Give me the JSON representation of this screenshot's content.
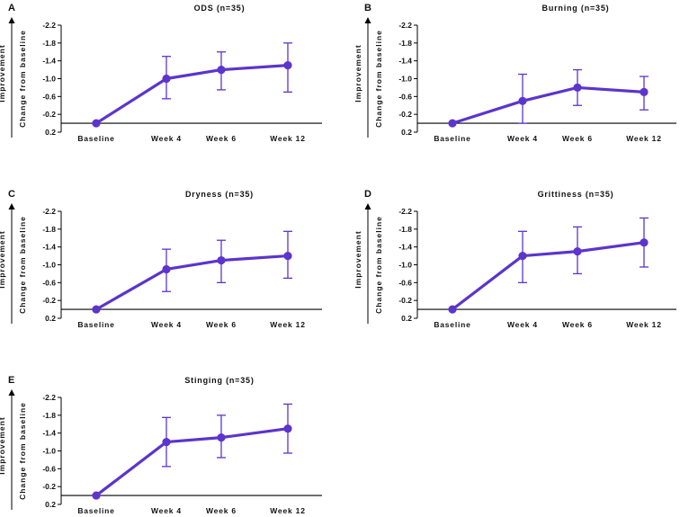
{
  "figure": {
    "series_color": "#5b35cc",
    "axis_color": "#000000"
  },
  "chart_data": [
    {
      "type": "line",
      "panel": "A",
      "title": "ODS (n=35)",
      "categories": [
        "Baseline",
        "Week 4",
        "Week 6",
        "Week 12"
      ],
      "values": [
        0,
        -1.0,
        -1.2,
        -1.3
      ],
      "error_upper": [
        0,
        -1.5,
        -1.6,
        -1.8
      ],
      "error_lower": [
        0,
        -0.55,
        -0.75,
        -0.7
      ],
      "ylabel": "Change from baseline",
      "ylabel_outer": "Improvement",
      "yticks": [
        "-2.2",
        "-1.8",
        "-1.4",
        "-1.0",
        "-0.6",
        "-0.2",
        "0.2"
      ],
      "ylim": [
        0.2,
        -2.2
      ],
      "legend": "none"
    },
    {
      "type": "line",
      "panel": "B",
      "title": "Burning (n=35)",
      "categories": [
        "Baseline",
        "Week 4",
        "Week 6",
        "Week 12"
      ],
      "values": [
        0,
        -0.5,
        -0.8,
        -0.7
      ],
      "error_upper": [
        0,
        -1.1,
        -1.2,
        -1.05
      ],
      "error_lower": [
        0,
        0,
        -0.4,
        -0.3
      ],
      "ylabel": "Change from baseline",
      "ylabel_outer": "Improvement",
      "yticks": [
        "-2.2",
        "-1.8",
        "-1.4",
        "-1.0",
        "-0.6",
        "-0.2",
        "0.2"
      ],
      "ylim": [
        0.2,
        -2.2
      ],
      "legend": "none"
    },
    {
      "type": "line",
      "panel": "C",
      "title": "Dryness (n=35)",
      "categories": [
        "Baseline",
        "Week 4",
        "Week 6",
        "Week 12"
      ],
      "values": [
        0,
        -0.9,
        -1.1,
        -1.2
      ],
      "error_upper": [
        0,
        -1.35,
        -1.55,
        -1.75
      ],
      "error_lower": [
        0,
        -0.4,
        -0.6,
        -0.7
      ],
      "ylabel": "Change from baseline",
      "ylabel_outer": "Improvement",
      "yticks": [
        "-2.2",
        "-1.8",
        "-1.4",
        "-1.0",
        "-0.6",
        "-0.2",
        "0.2"
      ],
      "ylim": [
        0.2,
        -2.2
      ],
      "legend": "none"
    },
    {
      "type": "line",
      "panel": "D",
      "title": "Grittiness (n=35)",
      "categories": [
        "Baseline",
        "Week 4",
        "Week 6",
        "Week 12"
      ],
      "values": [
        0,
        -1.2,
        -1.3,
        -1.5
      ],
      "error_upper": [
        0,
        -1.75,
        -1.85,
        -2.05
      ],
      "error_lower": [
        0,
        -0.6,
        -0.8,
        -0.95
      ],
      "ylabel": "Change from baseline",
      "ylabel_outer": "Improvement",
      "yticks": [
        "-2.2",
        "-1.8",
        "-1.4",
        "-1.0",
        "-0.6",
        "-0.2",
        "0.2"
      ],
      "ylim": [
        0.2,
        -2.2
      ],
      "legend": "none"
    },
    {
      "type": "line",
      "panel": "E",
      "title": "Stinging (n=35)",
      "categories": [
        "Baseline",
        "Week 4",
        "Week 6",
        "Week 12"
      ],
      "values": [
        0,
        -1.2,
        -1.3,
        -1.5
      ],
      "error_upper": [
        0,
        -1.75,
        -1.8,
        -2.05
      ],
      "error_lower": [
        0,
        -0.65,
        -0.85,
        -0.95
      ],
      "ylabel": "Change from baseline",
      "ylabel_outer": "Improvement",
      "yticks": [
        "-2.2",
        "-1.8",
        "-1.4",
        "-1.0",
        "-0.6",
        "-0.2",
        "0.2"
      ],
      "ylim": [
        0.2,
        -2.2
      ],
      "legend": "none"
    }
  ]
}
